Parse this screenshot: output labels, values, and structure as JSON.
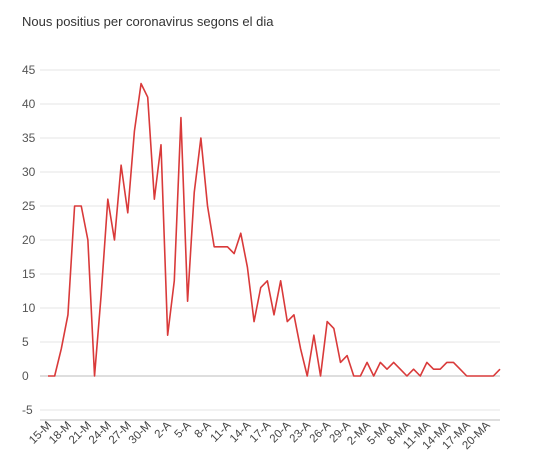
{
  "chart_data": {
    "type": "line",
    "title": "Nous positius per coronavirus segons el dia",
    "xlabel": "",
    "ylabel": "",
    "ylim": [
      -5,
      45
    ],
    "yticks": [
      45,
      40,
      35,
      30,
      25,
      20,
      15,
      10,
      5,
      0,
      -5
    ],
    "grid": true,
    "legend": "none",
    "line_color": "#d93a3a",
    "x_tick_labels": [
      "15-M",
      "18-M",
      "21-M",
      "24-M",
      "27-M",
      "30-M",
      "2-A",
      "5-A",
      "8-A",
      "11-A",
      "14-A",
      "17-A",
      "20-A",
      "23-A",
      "26-A",
      "29-A",
      "2-MA",
      "5-MA",
      "8-MA",
      "11-MA",
      "14-MA",
      "17-MA",
      "20-MA"
    ],
    "x_tick_every": 3,
    "series": [
      {
        "values": [
          0,
          0,
          4,
          9,
          25,
          25,
          20,
          0,
          12,
          26,
          20,
          31,
          24,
          36,
          43,
          41,
          26,
          34,
          6,
          14,
          38,
          11,
          27,
          35,
          25,
          19,
          19,
          19,
          18,
          21,
          16,
          8,
          13,
          14,
          9,
          14,
          8,
          9,
          4,
          0,
          6,
          0,
          8,
          7,
          2,
          3,
          0,
          0,
          2,
          0,
          2,
          1,
          2,
          1,
          0,
          1,
          0,
          2,
          1,
          1,
          2,
          2,
          1,
          0,
          0,
          0,
          0,
          0,
          1
        ]
      }
    ]
  }
}
